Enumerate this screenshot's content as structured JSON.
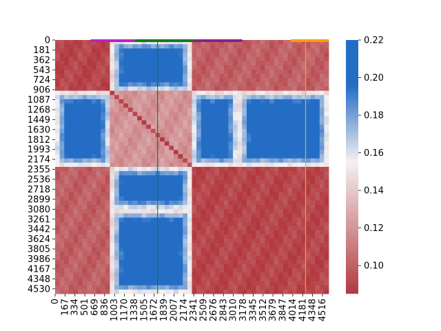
{
  "chart_data": {
    "type": "heatmap",
    "title": "",
    "xlabel": "",
    "ylabel": "",
    "n": 4620,
    "x_ticks": [
      0,
      167,
      334,
      501,
      669,
      836,
      1003,
      1170,
      1338,
      1505,
      1672,
      1839,
      2007,
      2174,
      2341,
      2509,
      2676,
      2843,
      3010,
      3178,
      3345,
      3512,
      3679,
      3847,
      4014,
      4181,
      4348,
      4516
    ],
    "y_ticks": [
      0,
      181,
      362,
      543,
      724,
      906,
      1087,
      1268,
      1449,
      1630,
      1812,
      1993,
      2174,
      2355,
      2536,
      2718,
      2899,
      3080,
      3261,
      3442,
      3624,
      3805,
      3986,
      4167,
      4348,
      4530
    ],
    "colorbar": {
      "ticks": [
        "0.10",
        "0.12",
        "0.14",
        "0.16",
        "0.18",
        "0.20",
        "0.22"
      ],
      "min": 0.085,
      "max": 0.22,
      "low_color": "#b2393f",
      "mid_color": "#f4f1f1",
      "high_color": "#246dc5"
    },
    "top_segments": [
      {
        "start": 600,
        "end": 1340,
        "color": "#c21fc2"
      },
      {
        "start": 1340,
        "end": 2340,
        "color": "#1a7a1a"
      },
      {
        "start": 2340,
        "end": 3160,
        "color": "#882288"
      },
      {
        "start": 3980,
        "end": 4620,
        "color": "#ff9d00"
      }
    ],
    "vertical_lines": [
      {
        "x": 1730,
        "color": "#1a7a1a"
      },
      {
        "x": 4230,
        "color": "#ffa500"
      }
    ]
  }
}
